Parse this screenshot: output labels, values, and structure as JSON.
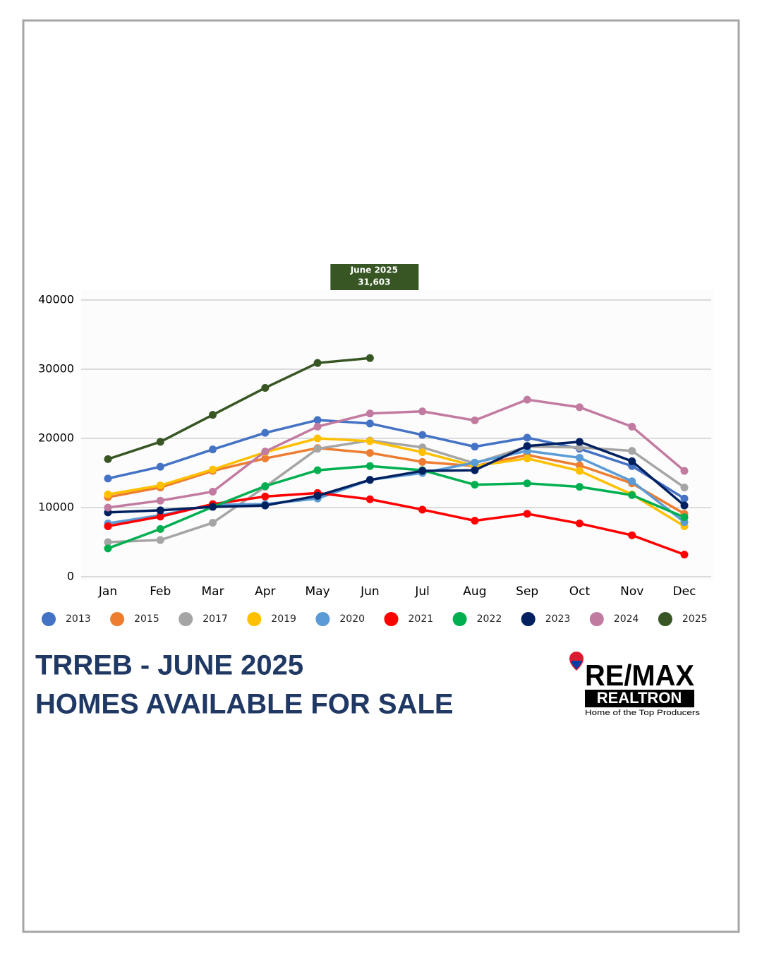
{
  "chart_data": {
    "type": "line",
    "annotation": "June 2025",
    "categories": [
      "Jan",
      "Feb",
      "Mar",
      "Apr",
      "May",
      "Jun",
      "Jul",
      "Aug",
      "Sep",
      "Oct",
      "Nov",
      "Dec"
    ],
    "ylim": [
      0,
      40000
    ],
    "yticks": [
      0,
      10000,
      20000,
      30000,
      40000
    ],
    "grid": true,
    "legend": "bottom",
    "series": [
      {
        "name": "2013",
        "color": "#4472c4",
        "values": [
          14200,
          15900,
          18400,
          20800,
          22650,
          22150,
          20500,
          18800,
          20100,
          18500,
          16000,
          11300
        ]
      },
      {
        "name": "2015",
        "color": "#ed7d31",
        "values": [
          11500,
          12900,
          15300,
          17100,
          18600,
          17900,
          16600,
          16000,
          17600,
          16100,
          13500,
          9100
        ]
      },
      {
        "name": "2017",
        "color": "#a5a5a5",
        "values": [
          5000,
          5300,
          7800,
          13000,
          18500,
          19700,
          18700,
          16400,
          18800,
          18700,
          18200,
          12900
        ]
      },
      {
        "name": "2019",
        "color": "#ffc000",
        "values": [
          11900,
          13200,
          15500,
          18000,
          20000,
          19600,
          18000,
          16000,
          17100,
          15300,
          11900,
          7300
        ]
      },
      {
        "name": "2020",
        "color": "#5b9bd5",
        "values": [
          7700,
          8900,
          10400,
          10500,
          11300,
          14000,
          15000,
          16500,
          18200,
          17200,
          13800,
          7900
        ]
      },
      {
        "name": "2021",
        "color": "#ff0000",
        "values": [
          7300,
          8700,
          10500,
          11600,
          12100,
          11200,
          9700,
          8100,
          9100,
          7700,
          6000,
          3200
        ]
      },
      {
        "name": "2022",
        "color": "#00b050",
        "values": [
          4100,
          6900,
          10100,
          13100,
          15400,
          16000,
          15400,
          13300,
          13500,
          13000,
          11800,
          8600
        ]
      },
      {
        "name": "2023",
        "color": "#002060",
        "values": [
          9300,
          9600,
          10100,
          10300,
          11700,
          14000,
          15300,
          15400,
          18900,
          19500,
          16700,
          10300
        ]
      },
      {
        "name": "2024",
        "color": "#c27ba0",
        "values": [
          10000,
          11000,
          12300,
          18100,
          21700,
          23600,
          23900,
          22600,
          25600,
          24500,
          21700,
          15300
        ]
      },
      {
        "name": "2025",
        "color": "#375623",
        "values": [
          17000,
          19500,
          23400,
          27300,
          30900,
          31603,
          null,
          null,
          null,
          null,
          null,
          null
        ],
        "value_labels": [
          null,
          null,
          null,
          null,
          null,
          "31,603",
          null,
          null,
          null,
          null,
          null,
          null
        ]
      }
    ]
  },
  "heading": {
    "line1": "TRREB - JUNE 2025",
    "line2": "HOMES AVAILABLE FOR SALE"
  },
  "logo": {
    "brand": "RE/MAX",
    "name": "REALTRON",
    "tagline": "Home of the Top Producers"
  }
}
